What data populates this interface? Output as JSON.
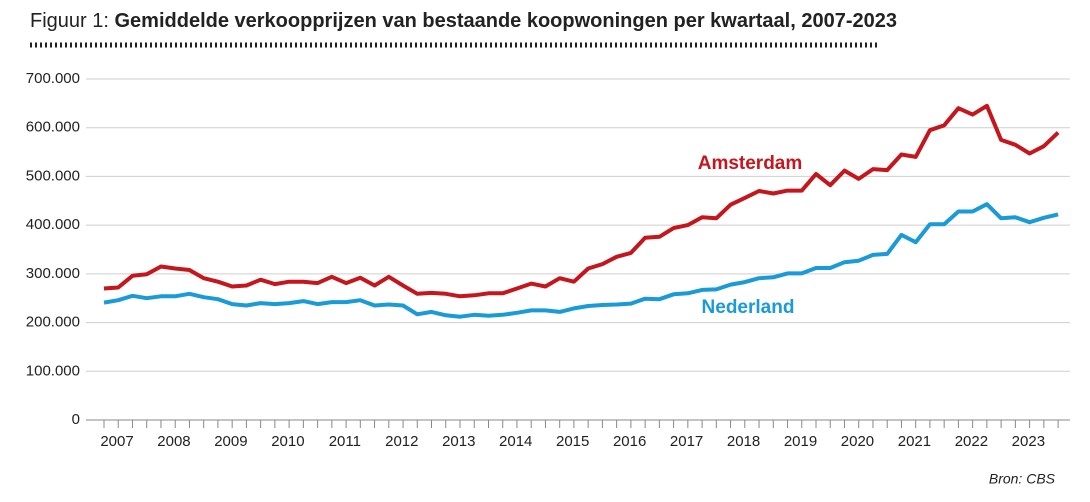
{
  "chart_data": {
    "type": "line",
    "title_prefix": "Figuur 1:",
    "title": "Gemiddelde verkoopprijzen van bestaande koopwoningen per kwartaal, 2007-2023",
    "source": "Bron: CBS",
    "categories": [
      "2007",
      null,
      null,
      null,
      "2008",
      null,
      null,
      null,
      "2009",
      null,
      null,
      null,
      "2010",
      null,
      null,
      null,
      "2011",
      null,
      null,
      null,
      "2012",
      null,
      null,
      null,
      "2013",
      null,
      null,
      null,
      "2014",
      null,
      null,
      null,
      "2015",
      null,
      null,
      null,
      "2016",
      null,
      null,
      null,
      "2017",
      null,
      null,
      null,
      "2018",
      null,
      null,
      null,
      "2019",
      null,
      null,
      null,
      "2020",
      null,
      null,
      null,
      "2021",
      null,
      null,
      null,
      "2022",
      null,
      null,
      null,
      "2023",
      null,
      null,
      null
    ],
    "series": [
      {
        "name": "Amsterdam",
        "color": "#c4161c",
        "values": [
          270000,
          272000,
          296000,
          299000,
          315000,
          311000,
          308000,
          291000,
          284000,
          274000,
          276000,
          288000,
          279000,
          284000,
          284000,
          281000,
          294000,
          281000,
          292000,
          276000,
          294000,
          276000,
          259000,
          261000,
          259000,
          254000,
          256000,
          260000,
          260000,
          270000,
          280000,
          274000,
          291000,
          284000,
          311000,
          320000,
          335000,
          343000,
          374000,
          376000,
          394000,
          400000,
          416000,
          414000,
          442000,
          456000,
          470000,
          465000,
          471000,
          471000,
          505000,
          482000,
          512000,
          495000,
          515000,
          513000,
          545000,
          540000,
          595000,
          605000,
          640000,
          627000,
          645000,
          575000,
          565000,
          547000,
          562000,
          590000
        ]
      },
      {
        "name": "Nederland",
        "color": "#1a9ad6",
        "values": [
          241000,
          246000,
          255000,
          250000,
          254000,
          254000,
          259000,
          252000,
          248000,
          238000,
          235000,
          240000,
          238000,
          240000,
          244000,
          238000,
          242000,
          242000,
          246000,
          235000,
          237000,
          235000,
          217000,
          222000,
          215000,
          212000,
          216000,
          214000,
          216000,
          220000,
          225000,
          225000,
          222000,
          229000,
          234000,
          236000,
          237000,
          239000,
          249000,
          248000,
          258000,
          260000,
          267000,
          268000,
          278000,
          283000,
          291000,
          293000,
          301000,
          301000,
          312000,
          312000,
          324000,
          327000,
          339000,
          341000,
          380000,
          365000,
          402000,
          402000,
          428000,
          428000,
          443000,
          414000,
          416000,
          406000,
          415000,
          422000
        ]
      }
    ],
    "ylim": [
      0,
      700000
    ],
    "yticks": [
      0,
      {
        "value": 100000,
        "label": "100.000"
      },
      {
        "value": 200000,
        "label": "200.000"
      },
      {
        "value": 300000,
        "label": "300.000"
      },
      {
        "value": 400000,
        "label": "400.000"
      },
      {
        "value": 500000,
        "label": "500.000"
      },
      {
        "value": 600000,
        "label": "600.000"
      },
      {
        "value": 700000,
        "label": "700.000"
      }
    ],
    "grid": true
  }
}
